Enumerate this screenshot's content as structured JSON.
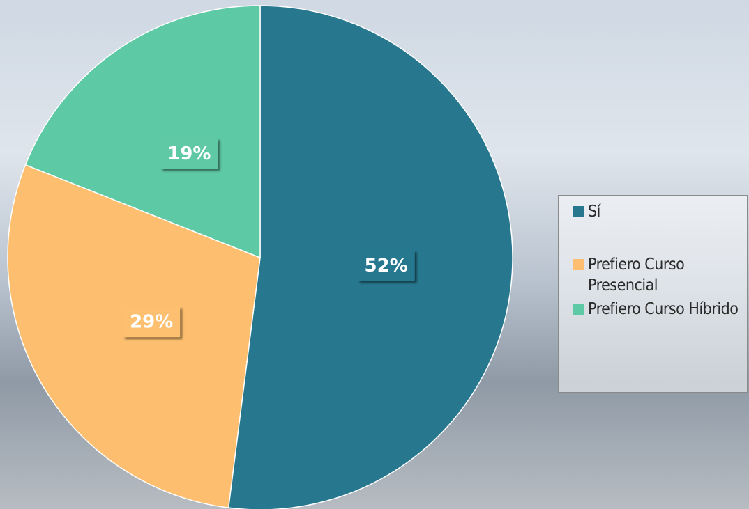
{
  "chart_data": {
    "type": "pie",
    "categories": [
      "Sí",
      "Prefiero Curso Presencial",
      "Prefiero Curso Híbrido"
    ],
    "values": [
      52,
      29,
      19
    ],
    "value_labels": [
      "52%",
      "29%",
      "19%"
    ],
    "colors": [
      "#27788f",
      "#fdbf6f",
      "#5ec9a5"
    ],
    "legend": "right"
  }
}
